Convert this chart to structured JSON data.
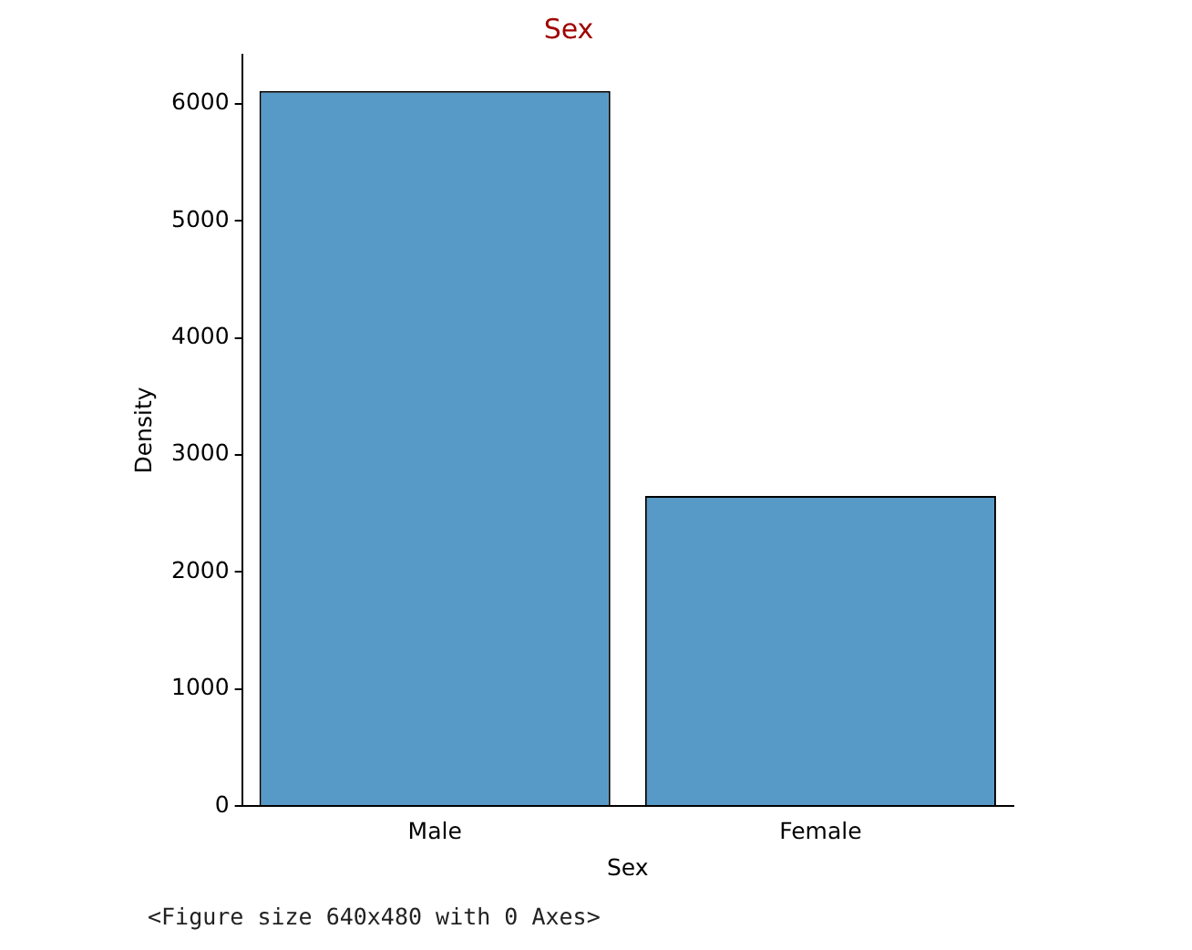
{
  "chart_data": {
    "type": "bar",
    "title": "Sex",
    "xlabel": "Sex",
    "ylabel": "Density",
    "categories": [
      "Male",
      "Female"
    ],
    "values": [
      6110,
      2650
    ],
    "color": "#5799c7",
    "ylim": [
      0,
      6420
    ],
    "yticks": [
      0,
      1000,
      2000,
      3000,
      4000,
      5000,
      6000
    ],
    "grid": false,
    "legend": false,
    "annotations": [
      "<Figure size 640x480 with 0 Axes>"
    ]
  }
}
